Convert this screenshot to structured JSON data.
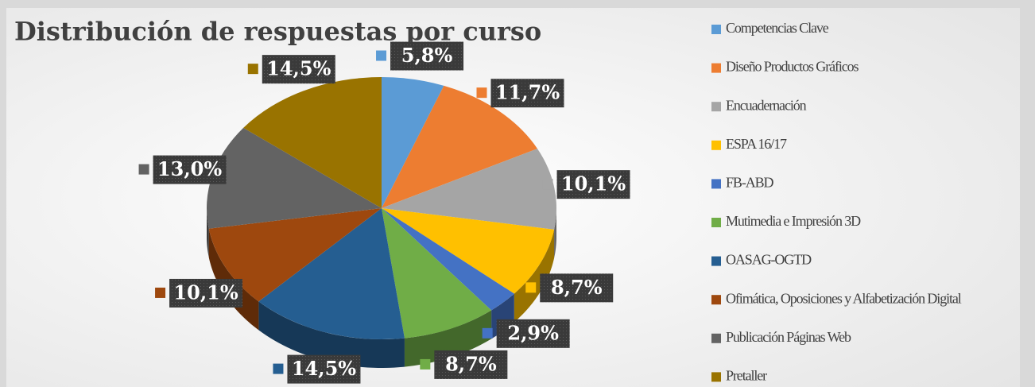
{
  "chart_data": {
    "type": "pie",
    "title": "Distribución de respuestas por curso",
    "categories": [
      "Competencias Clave",
      "Diseño Productos Gráficos",
      "Encuadernación",
      "ESPA 16/17",
      "FB-ABD",
      "Mutimedia e Impresión 3D",
      "OASAG-OGTD",
      "Ofimática, Oposiciones y Alfabetización Digital",
      "Publicación Páginas Web",
      "Pretaller"
    ],
    "values": [
      5.8,
      11.7,
      10.1,
      8.7,
      2.9,
      8.7,
      14.5,
      10.1,
      13.0,
      14.5
    ],
    "value_labels": [
      "5,8%",
      "11,7%",
      "10,1%",
      "8,7%",
      "2,9%",
      "8,7%",
      "14,5%",
      "10,1%",
      "13,0%",
      "14,5%"
    ],
    "colors": [
      "#5b9bd5",
      "#ed7d31",
      "#a5a5a5",
      "#ffc000",
      "#4472c4",
      "#70ad47",
      "#255e91",
      "#9e480e",
      "#636363",
      "#997300"
    ],
    "legend": "right"
  }
}
